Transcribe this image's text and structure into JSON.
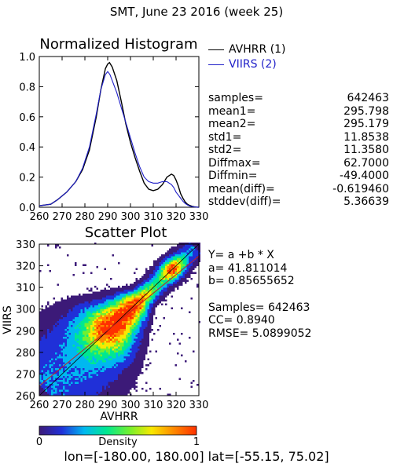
{
  "page_title": "SMT,  June 23 2016 (week 25)",
  "chart_data": [
    {
      "type": "line",
      "title": "Normalized Histogram",
      "xlim": [
        260,
        330
      ],
      "ylim": [
        0,
        1.0
      ],
      "x_tick_labels": [
        "260",
        "270",
        "280",
        "290",
        "300",
        "310",
        "320",
        "330"
      ],
      "y_tick_labels": [
        "0.0",
        "0.2",
        "0.4",
        "0.6",
        "0.8",
        "1.0"
      ],
      "series": [
        {
          "name": "AVHRR (1)",
          "color": "#000000",
          "x": [
            260,
            265,
            268,
            272,
            276,
            279,
            282,
            285,
            287,
            289,
            290,
            290.8,
            292,
            294,
            296,
            298,
            300,
            302,
            304,
            306,
            308,
            310,
            312,
            314,
            316,
            318,
            319,
            320,
            321,
            322,
            323,
            324,
            325,
            326,
            327,
            328,
            329,
            330
          ],
          "values": [
            0.01,
            0.02,
            0.05,
            0.1,
            0.17,
            0.25,
            0.38,
            0.6,
            0.78,
            0.92,
            0.95,
            0.96,
            0.93,
            0.84,
            0.7,
            0.55,
            0.43,
            0.33,
            0.24,
            0.16,
            0.12,
            0.11,
            0.12,
            0.15,
            0.2,
            0.22,
            0.21,
            0.18,
            0.14,
            0.09,
            0.06,
            0.035,
            0.02,
            0.012,
            0.006,
            0.003,
            0.001,
            0.0
          ]
        },
        {
          "name": "VIIRS (2)",
          "color": "#1f1fc8",
          "x": [
            260,
            265,
            268,
            272,
            276,
            279,
            282,
            285,
            287,
            289,
            290,
            291,
            292,
            294,
            296,
            298,
            300,
            302,
            304,
            306,
            308,
            310,
            312,
            314,
            316,
            318,
            319,
            320,
            321,
            322,
            323,
            324,
            325,
            326,
            327,
            328,
            329,
            330
          ],
          "values": [
            0.01,
            0.02,
            0.05,
            0.1,
            0.17,
            0.26,
            0.4,
            0.62,
            0.78,
            0.88,
            0.9,
            0.88,
            0.84,
            0.76,
            0.66,
            0.56,
            0.46,
            0.36,
            0.27,
            0.2,
            0.17,
            0.16,
            0.16,
            0.17,
            0.17,
            0.15,
            0.13,
            0.1,
            0.08,
            0.06,
            0.04,
            0.025,
            0.015,
            0.008,
            0.004,
            0.002,
            0.001,
            0.0
          ]
        }
      ]
    },
    {
      "type": "scatter",
      "title": "Scatter Plot",
      "xlabel": "AVHRR",
      "ylabel": "VIIRS",
      "xlim": [
        260,
        330
      ],
      "ylim": [
        260,
        330
      ],
      "x_tick_labels": [
        "260",
        "270",
        "280",
        "290",
        "300",
        "310",
        "320",
        "330"
      ],
      "y_tick_labels": [
        "260",
        "270",
        "280",
        "290",
        "300",
        "310",
        "320",
        "330"
      ],
      "fit_line": {
        "a": 41.811014,
        "b": 0.85655652
      },
      "colorbar": {
        "label": "Density",
        "min_label": "0",
        "max_label": "1",
        "colors": [
          "#3c1a78",
          "#2030d8",
          "#00b8f0",
          "#00e890",
          "#70f030",
          "#f8e800",
          "#ff8800",
          "#ff3000"
        ]
      }
    }
  ],
  "legend": {
    "avhrr": "AVHRR (1)",
    "viirs": "VIIRS (2)"
  },
  "stats": [
    {
      "label": "samples=",
      "value": "642463"
    },
    {
      "label": "mean1=",
      "value": "295.798"
    },
    {
      "label": "mean2=",
      "value": "295.179"
    },
    {
      "label": "std1=",
      "value": "11.8538"
    },
    {
      "label": "std2=",
      "value": "11.3580"
    },
    {
      "label": "Diffmax=",
      "value": "62.7000"
    },
    {
      "label": "Diffmin=",
      "value": "-49.4000"
    },
    {
      "label": "mean(diff)=",
      "value": "-0.619460"
    },
    {
      "label": "stddev(diff)=",
      "value": "5.36639"
    }
  ],
  "fit": {
    "equation": "Y= a +b * X",
    "a": "a= 41.811014",
    "b": "b= 0.85655652",
    "samples": "Samples= 642463",
    "cc": "CC=  0.8940",
    "rmse": "RMSE= 5.0899052"
  },
  "region": "lon=[-180.00, 180.00] lat=[-55.15, 75.02]"
}
